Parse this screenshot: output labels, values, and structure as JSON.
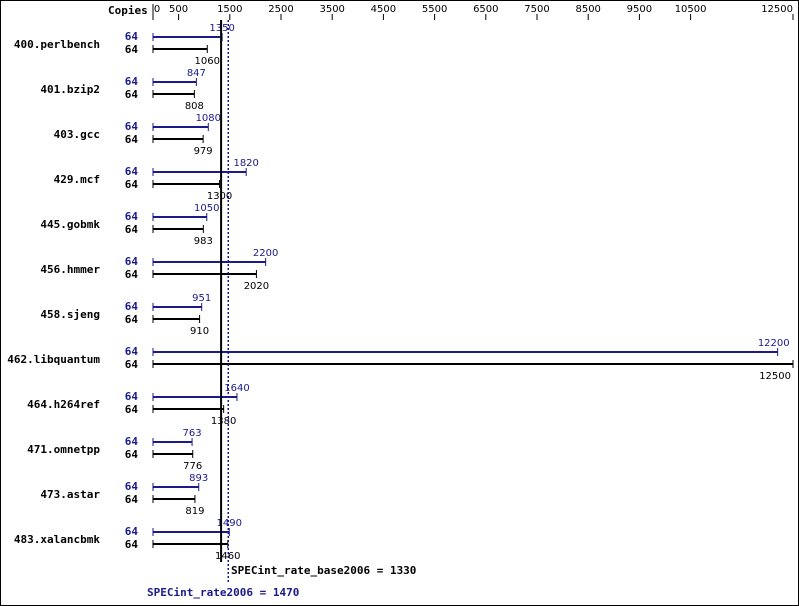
{
  "colors": {
    "peak": "#1a1a8c",
    "base": "#000000",
    "border": "#000000"
  },
  "chart_data": {
    "type": "bar",
    "copies_header": "Copies",
    "x_ticks": [
      "0",
      "500",
      "1500",
      "2500",
      "3500",
      "4500",
      "5500",
      "6500",
      "7500",
      "8500",
      "9500",
      "10500",
      "12500"
    ],
    "x_tick_values": [
      0,
      500,
      1500,
      2500,
      3500,
      4500,
      5500,
      6500,
      7500,
      8500,
      9500,
      10500,
      12500
    ],
    "xlim": [
      0,
      12500
    ],
    "categories": [
      "400.perlbench",
      "401.bzip2",
      "403.gcc",
      "429.mcf",
      "445.gobmk",
      "456.hmmer",
      "458.sjeng",
      "462.libquantum",
      "464.h264ref",
      "471.omnetpp",
      "473.astar",
      "483.xalancbmk"
    ],
    "series": [
      {
        "name": "SPECint_rate2006",
        "copies": [
          "64",
          "64",
          "64",
          "64",
          "64",
          "64",
          "64",
          "64",
          "64",
          "64",
          "64",
          "64"
        ],
        "values": [
          1350,
          847,
          1080,
          1820,
          1050,
          2200,
          951,
          12200,
          1640,
          763,
          893,
          1490
        ],
        "labels": [
          "1350",
          "847",
          "1080",
          "1820",
          "1050",
          "2200",
          "951",
          "12200",
          "1640",
          "763",
          "893",
          "1490"
        ]
      },
      {
        "name": "SPECint_rate_base2006",
        "copies": [
          "64",
          "64",
          "64",
          "64",
          "64",
          "64",
          "64",
          "64",
          "64",
          "64",
          "64",
          "64"
        ],
        "values": [
          1060,
          808,
          979,
          1300,
          983,
          2020,
          910,
          12500,
          1380,
          776,
          819,
          1460
        ],
        "labels": [
          "1060",
          "808",
          "979",
          "1300",
          "983",
          "2020",
          "910",
          "12500",
          "1380",
          "776",
          "819",
          "1460"
        ]
      }
    ],
    "reference_lines": {
      "base": {
        "value": 1330,
        "label": "SPECint_rate_base2006 = 1330"
      },
      "peak": {
        "value": 1470,
        "label": "SPECint_rate2006 = 1470"
      }
    }
  }
}
